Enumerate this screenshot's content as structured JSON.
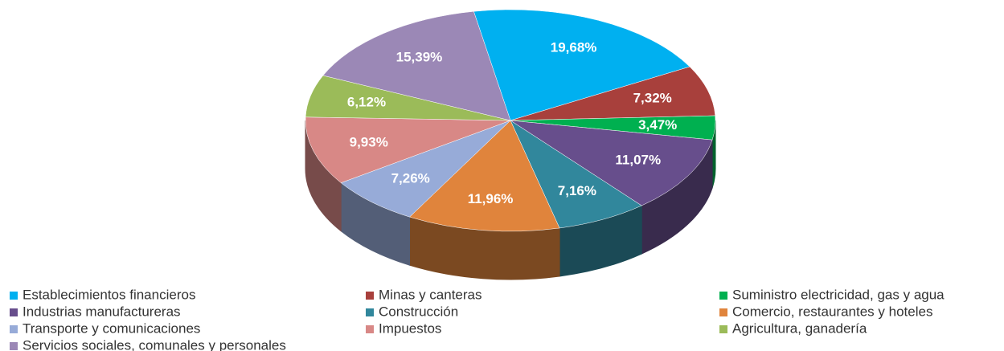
{
  "chart_data": {
    "type": "pie",
    "categories": [
      "Establecimientos financieros",
      "Minas y  canteras",
      "Suministro electricidad, gas y agua",
      "Industrias manufactureras",
      "Construcción",
      "Comercio, restaurantes y hoteles",
      "Transporte y  comunicaciones",
      "Impuestos",
      "Agricultura, ganadería",
      "Servicios sociales, comunales y personales"
    ],
    "values": [
      19.68,
      7.32,
      3.47,
      11.07,
      7.16,
      11.96,
      7.26,
      9.93,
      6.12,
      15.39
    ],
    "value_labels": [
      "19,68%",
      "7,32%",
      "3,47%",
      "11,07%",
      "7,16%",
      "11,96%",
      "7,26%",
      "9,93%",
      "6,12%",
      "15,39%"
    ],
    "colors": [
      "#00b0f0",
      "#a8403c",
      "#00b050",
      "#674e8c",
      "#31879c",
      "#e0843c",
      "#97abd8",
      "#d88886",
      "#9bbb59",
      "#9b88b6"
    ],
    "legend": "bottom"
  }
}
